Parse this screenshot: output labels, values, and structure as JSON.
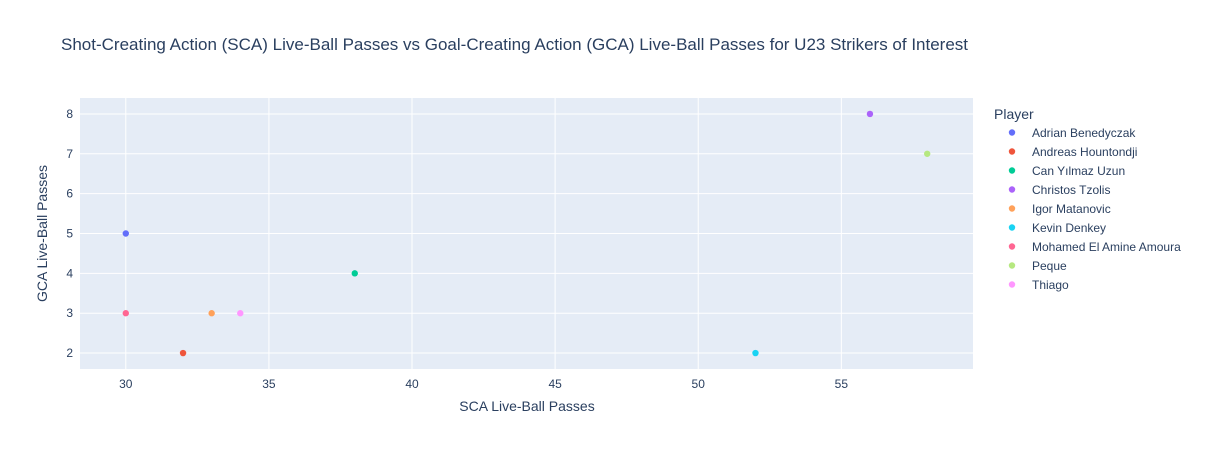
{
  "chart_data": {
    "type": "scatter",
    "title": "Shot-Creating Action (SCA) Live-Ball Passes vs Goal-Creating Action (GCA) Live-Ball Passes for U23 Strikers of Interest",
    "xlabel": "SCA Live-Ball Passes",
    "ylabel": "GCA Live-Ball Passes",
    "xlim": [
      28.4,
      59.6
    ],
    "ylim": [
      1.6,
      8.4
    ],
    "x_ticks": [
      30,
      35,
      40,
      45,
      50,
      55
    ],
    "y_ticks": [
      2,
      3,
      4,
      5,
      6,
      7,
      8
    ],
    "grid": true,
    "legend_title": "Player",
    "legend_position": "right",
    "plot_bg": "#e5ecf6",
    "series": [
      {
        "name": "Adrian Benedyczak",
        "color": "#636efa",
        "x": [
          30
        ],
        "y": [
          5
        ]
      },
      {
        "name": "Andreas Hountondji",
        "color": "#EF553B",
        "x": [
          32
        ],
        "y": [
          2
        ]
      },
      {
        "name": "Can Yılmaz Uzun",
        "color": "#00cc96",
        "x": [
          38
        ],
        "y": [
          4
        ]
      },
      {
        "name": "Christos Tzolis",
        "color": "#ab63fa",
        "x": [
          56
        ],
        "y": [
          8
        ]
      },
      {
        "name": "Igor Matanovic",
        "color": "#FFA15A",
        "x": [
          33
        ],
        "y": [
          3
        ]
      },
      {
        "name": "Kevin Denkey",
        "color": "#19d3f3",
        "x": [
          52
        ],
        "y": [
          2
        ]
      },
      {
        "name": "Mohamed El Amine Amoura",
        "color": "#FF6692",
        "x": [
          30
        ],
        "y": [
          3
        ]
      },
      {
        "name": "Peque",
        "color": "#B6E880",
        "x": [
          58
        ],
        "y": [
          7
        ]
      },
      {
        "name": "Thiago",
        "color": "#FF97FF",
        "x": [
          34
        ],
        "y": [
          3
        ]
      }
    ]
  }
}
